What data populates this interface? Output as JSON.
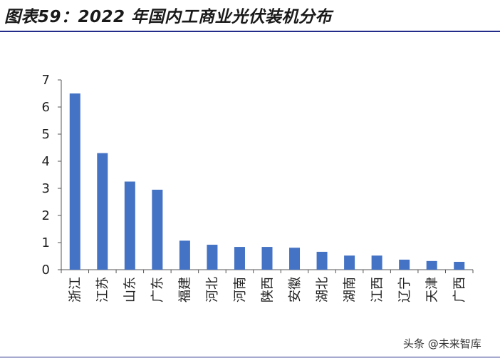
{
  "header": {
    "title": "图表59：2022 年国内工商业光伏装机分布"
  },
  "footer": {
    "watermark": "头条 @未来智库"
  },
  "colors": {
    "bar": "#4472c4",
    "axis": "#555555",
    "rule": "#222a8a"
  },
  "chart_data": {
    "type": "bar",
    "title": "",
    "xlabel": "",
    "ylabel": "",
    "ylim": [
      0,
      7
    ],
    "yticks": [
      "0",
      "1",
      "2",
      "3",
      "4",
      "5",
      "6",
      "7"
    ],
    "grid": false,
    "categories": [
      "浙江",
      "江苏",
      "山东",
      "广东",
      "福建",
      "河北",
      "河南",
      "陕西",
      "安徽",
      "湖北",
      "湖南",
      "江西",
      "辽宁",
      "天津",
      "广西"
    ],
    "values": [
      6.5,
      4.3,
      3.25,
      2.95,
      1.07,
      0.92,
      0.84,
      0.84,
      0.81,
      0.66,
      0.52,
      0.52,
      0.37,
      0.32,
      0.29
    ]
  }
}
